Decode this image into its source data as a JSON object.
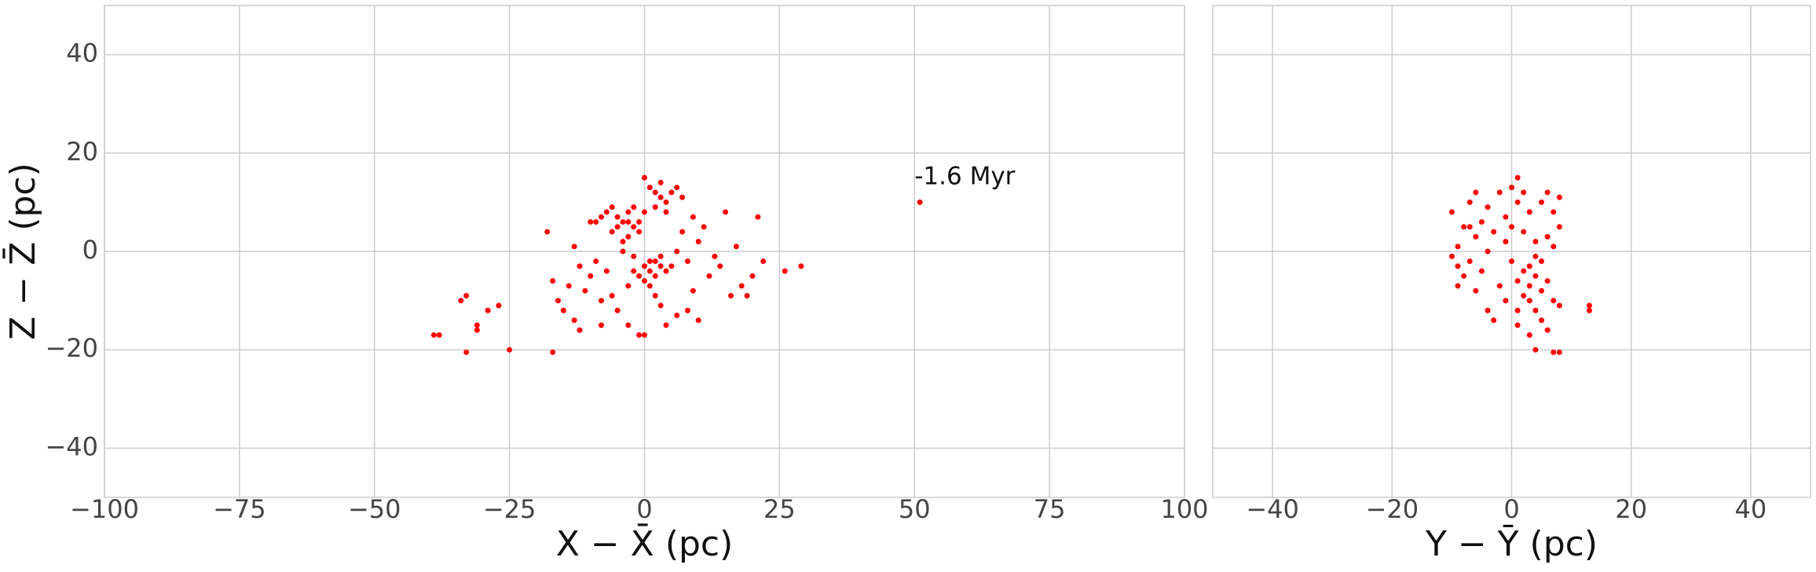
{
  "chart_data": [
    {
      "type": "scatter",
      "ylabel": "Z − Z̄ (pc)",
      "xlabel": "X − X̄ (pc)",
      "color": "#ff0000",
      "grid": true,
      "annotation": {
        "text": "-1.6 Myr",
        "x": 50,
        "y": 15
      },
      "xlim": [
        -100,
        100
      ],
      "ylim": [
        -50,
        50
      ],
      "xticks": [
        {
          "value": -100,
          "label": "−100"
        },
        {
          "value": -75,
          "label": "−75"
        },
        {
          "value": -50,
          "label": "−50"
        },
        {
          "value": -25,
          "label": "−25"
        },
        0,
        25,
        50,
        75,
        100
      ],
      "yticks": [
        {
          "value": -40,
          "label": "−40"
        },
        {
          "value": -20,
          "label": "−20"
        },
        0,
        20,
        40
      ],
      "x": [
        -5,
        -4,
        -3,
        -2,
        -6,
        -7,
        -3,
        -1,
        -4,
        -2,
        -8,
        -5,
        -1,
        0,
        -3,
        -6,
        -9,
        -4,
        -2,
        0,
        1,
        2,
        3,
        -1,
        1,
        2,
        4,
        0,
        -2,
        3,
        1,
        5,
        -3,
        2,
        2,
        3,
        4,
        1,
        5,
        3,
        0,
        4,
        6,
        2,
        7,
        -10,
        -12,
        -14,
        -8,
        -11,
        -15,
        -13,
        -9,
        -6,
        -5,
        -7,
        -16,
        -17,
        -12,
        6,
        8,
        10,
        12,
        9,
        14,
        11,
        7,
        15,
        16,
        18,
        13,
        17,
        20,
        22,
        19,
        6,
        4,
        0,
        -1,
        8,
        10,
        3,
        -3,
        -8,
        -10,
        -13,
        9,
        -39,
        -38,
        -34,
        -33,
        -33,
        -31,
        -31,
        -29,
        -27,
        -25,
        -17,
        -18,
        51,
        29,
        26,
        21
      ],
      "y": [
        7,
        6,
        8,
        5,
        4,
        8,
        3,
        6,
        2,
        9,
        7,
        5,
        4,
        8,
        6,
        9,
        6,
        0,
        -1,
        -3,
        -4,
        -2,
        -3,
        -5,
        -2,
        -5,
        -4,
        -6,
        -4,
        -1,
        -7,
        -3,
        -7,
        -9,
        12,
        11,
        10,
        13,
        12,
        14,
        15,
        8,
        13,
        9,
        11,
        -5,
        -3,
        -7,
        -10,
        -8,
        -12,
        -14,
        -2,
        -9,
        -12,
        -4,
        -10,
        -6,
        -16,
        0,
        -2,
        2,
        -5,
        -8,
        -3,
        5,
        4,
        8,
        -9,
        -7,
        -1,
        1,
        -5,
        -2,
        -9,
        -13,
        -15,
        -17,
        -17,
        -12,
        -14,
        -11,
        -15,
        -15,
        6,
        1,
        7,
        -17,
        -17,
        -10,
        -9,
        -20.5,
        -16,
        -15,
        -12,
        -11,
        -20,
        -20.5,
        4,
        10,
        -3,
        -4,
        7
      ]
    },
    {
      "type": "scatter",
      "xlabel": "Y − Ȳ (pc)",
      "color": "#ff0000",
      "grid": true,
      "xlim": [
        -50,
        50
      ],
      "ylim": [
        -50,
        50
      ],
      "xticks": [
        {
          "value": -40,
          "label": "−40"
        },
        {
          "value": -20,
          "label": "−20"
        },
        0,
        20,
        40
      ],
      "yticks": [
        -40,
        -20,
        0,
        20,
        40
      ],
      "x": [
        -8,
        -6,
        -9,
        -7,
        -5,
        -4,
        -3,
        -10,
        -8,
        -6,
        -4,
        -3,
        -2,
        -9,
        -7,
        -5,
        -1,
        0,
        1,
        0,
        1,
        2,
        3,
        2,
        0,
        1,
        2,
        3,
        4,
        3,
        5,
        4,
        2,
        3,
        5,
        6,
        7,
        6,
        7,
        8,
        8,
        6,
        5,
        6,
        4,
        1,
        -1,
        -6,
        -2,
        -10,
        -9,
        8,
        7,
        4,
        5,
        -1,
        -4,
        -7,
        1,
        3,
        13,
        13,
        4,
        7,
        8
      ],
      "y": [
        5,
        3,
        1,
        -2,
        6,
        9,
        4,
        8,
        -5,
        -8,
        -12,
        -14,
        -7,
        -3,
        10,
        -4,
        2,
        5,
        10,
        13,
        15,
        12,
        8,
        4,
        -2,
        -6,
        -4,
        -3,
        -5,
        -7,
        -2,
        -1,
        -9,
        -10,
        -8,
        -6,
        -10,
        3,
        8,
        11,
        5,
        12,
        -14,
        -16,
        -12,
        -12,
        -10,
        12,
        12,
        -1,
        -7,
        -11,
        1,
        2,
        10,
        7,
        0,
        5,
        -15,
        -17,
        -11,
        -12,
        -20,
        -20.5,
        -20.5
      ]
    }
  ]
}
